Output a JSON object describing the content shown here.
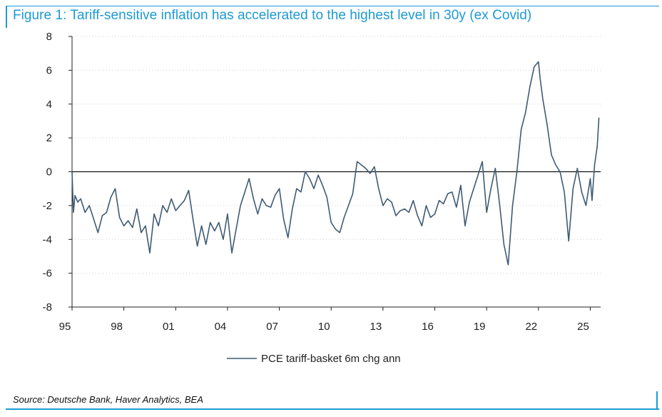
{
  "chart_data": {
    "type": "line",
    "title": "Figure 1: Tariff-sensitive inflation has accelerated to the highest level in 30y (ex Covid)",
    "xlabel": "",
    "ylabel": "",
    "xlim": [
      1995.0,
      2025.6
    ],
    "ylim": [
      -8,
      8
    ],
    "x_ticks": [
      1995,
      1998,
      2001,
      2004,
      2007,
      2010,
      2013,
      2016,
      2019,
      2022,
      2025
    ],
    "x_tick_labels": [
      "95",
      "98",
      "01",
      "04",
      "07",
      "10",
      "13",
      "16",
      "19",
      "22",
      "25"
    ],
    "y_ticks": [
      -8,
      -6,
      -4,
      -2,
      0,
      2,
      4,
      6,
      8
    ],
    "y_tick_labels": [
      "-8",
      "-6",
      "-4",
      "-2",
      "0",
      "2",
      "4",
      "6",
      "8"
    ],
    "grid": "horizontal dotted",
    "legend_position": "bottom-center",
    "series": [
      {
        "name": "PCE tariff-basket 6m chg ann",
        "color": "#3f5b73",
        "x": [
          1995.0,
          1995.08,
          1995.17,
          1995.33,
          1995.5,
          1995.75,
          1996.0,
          1996.25,
          1996.5,
          1996.75,
          1997.0,
          1997.25,
          1997.5,
          1997.75,
          1998.0,
          1998.25,
          1998.5,
          1998.75,
          1999.0,
          1999.25,
          1999.5,
          1999.75,
          2000.0,
          2000.25,
          2000.5,
          2000.75,
          2001.0,
          2001.25,
          2001.5,
          2001.75,
          2002.0,
          2002.25,
          2002.5,
          2002.75,
          2003.0,
          2003.25,
          2003.5,
          2003.75,
          2004.0,
          2004.25,
          2004.5,
          2004.75,
          2005.0,
          2005.25,
          2005.5,
          2005.75,
          2006.0,
          2006.25,
          2006.5,
          2006.75,
          2007.0,
          2007.25,
          2007.5,
          2007.75,
          2008.0,
          2008.25,
          2008.5,
          2008.75,
          2009.0,
          2009.25,
          2009.5,
          2009.75,
          2010.0,
          2010.25,
          2010.5,
          2010.75,
          2011.0,
          2011.25,
          2011.5,
          2011.75,
          2012.0,
          2012.25,
          2012.5,
          2012.75,
          2013.0,
          2013.25,
          2013.5,
          2013.75,
          2014.0,
          2014.25,
          2014.5,
          2014.75,
          2015.0,
          2015.25,
          2015.5,
          2015.75,
          2016.0,
          2016.25,
          2016.5,
          2016.75,
          2017.0,
          2017.25,
          2017.5,
          2017.75,
          2018.0,
          2018.25,
          2018.5,
          2018.75,
          2019.0,
          2019.25,
          2019.5,
          2019.75,
          2020.0,
          2020.25,
          2020.5,
          2020.75,
          2021.0,
          2021.25,
          2021.5,
          2021.75,
          2022.0,
          2022.1,
          2022.25,
          2022.5,
          2022.75,
          2023.0,
          2023.25,
          2023.5,
          2023.75,
          2024.0,
          2024.25,
          2024.5,
          2024.75,
          2025.0,
          2025.1,
          2025.25,
          2025.4,
          2025.5
        ],
        "values": [
          0.0,
          -2.4,
          -1.4,
          -1.8,
          -1.6,
          -2.4,
          -2.0,
          -2.8,
          -3.6,
          -2.6,
          -2.4,
          -1.5,
          -1.0,
          -2.7,
          -3.2,
          -2.9,
          -3.3,
          -2.2,
          -3.6,
          -3.2,
          -4.8,
          -2.5,
          -3.2,
          -2.0,
          -2.4,
          -1.6,
          -2.3,
          -2.0,
          -1.7,
          -1.1,
          -2.8,
          -4.4,
          -3.2,
          -4.3,
          -3.0,
          -3.5,
          -3.0,
          -4.0,
          -2.5,
          -4.8,
          -3.4,
          -2.0,
          -1.2,
          -0.4,
          -1.6,
          -2.5,
          -1.6,
          -2.0,
          -2.1,
          -1.4,
          -1.0,
          -2.8,
          -3.9,
          -2.2,
          -1.0,
          -1.2,
          0.0,
          -0.4,
          -1.0,
          -0.2,
          -0.8,
          -1.5,
          -3.0,
          -3.4,
          -3.6,
          -2.7,
          -2.0,
          -1.3,
          0.6,
          0.4,
          0.2,
          -0.1,
          0.3,
          -1.0,
          -2.0,
          -1.6,
          -1.8,
          -2.6,
          -2.3,
          -2.2,
          -2.4,
          -1.7,
          -2.6,
          -3.2,
          -2.0,
          -2.7,
          -2.5,
          -1.7,
          -1.9,
          -1.3,
          -1.2,
          -2.1,
          -0.8,
          -3.2,
          -1.8,
          -1.0,
          -0.2,
          0.6,
          -2.4,
          -1.0,
          0.2,
          -1.9,
          -4.3,
          -5.5,
          -2.0,
          0.0,
          2.5,
          3.5,
          5.0,
          6.2,
          6.5,
          5.5,
          4.3,
          2.8,
          1.0,
          0.4,
          0.0,
          -1.2,
          -4.1,
          -1.0,
          0.2,
          -1.2,
          -2.0,
          -0.4,
          -1.7,
          0.4,
          1.5,
          3.2
        ]
      }
    ]
  },
  "legend": {
    "label": "PCE tariff-basket 6m chg ann"
  },
  "source": "Source: Deutsche Bank, Haver Analytics, BEA",
  "colors": {
    "accent": "#1c9ad6",
    "line": "#3f5b73",
    "axis": "#222222",
    "grid": "#d0d0d0"
  }
}
